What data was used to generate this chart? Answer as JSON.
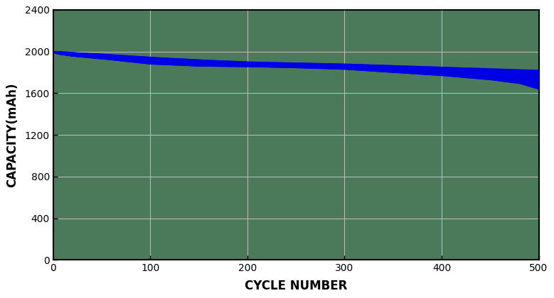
{
  "title": "",
  "xlabel": "CYCLE NUMBER",
  "ylabel": "CAPACITY(mAh)",
  "xlim": [
    0,
    500
  ],
  "ylim": [
    0,
    2400
  ],
  "xticks": [
    0,
    100,
    200,
    300,
    400,
    500
  ],
  "yticks": [
    0,
    400,
    800,
    1200,
    1600,
    2000,
    2400
  ],
  "band_color": "#0000EE",
  "grid_color": "#c0c0c0",
  "bg_color": "#4a7a5a",
  "fig_bg_color": "#ffffff",
  "upper_curve_x": [
    0,
    5,
    20,
    50,
    100,
    150,
    200,
    250,
    300,
    350,
    400,
    450,
    480,
    500
  ],
  "upper_curve_y": [
    2000,
    2000,
    1990,
    1975,
    1945,
    1920,
    1900,
    1890,
    1880,
    1865,
    1850,
    1835,
    1825,
    1820
  ],
  "lower_curve_x": [
    0,
    5,
    20,
    50,
    100,
    150,
    200,
    250,
    300,
    350,
    400,
    450,
    480,
    500
  ],
  "lower_curve_y": [
    1990,
    1975,
    1955,
    1930,
    1880,
    1860,
    1855,
    1845,
    1830,
    1800,
    1770,
    1730,
    1695,
    1640
  ],
  "xlabel_fontsize": 12,
  "ylabel_fontsize": 12,
  "tick_fontsize": 10,
  "label_fontweight": "bold"
}
